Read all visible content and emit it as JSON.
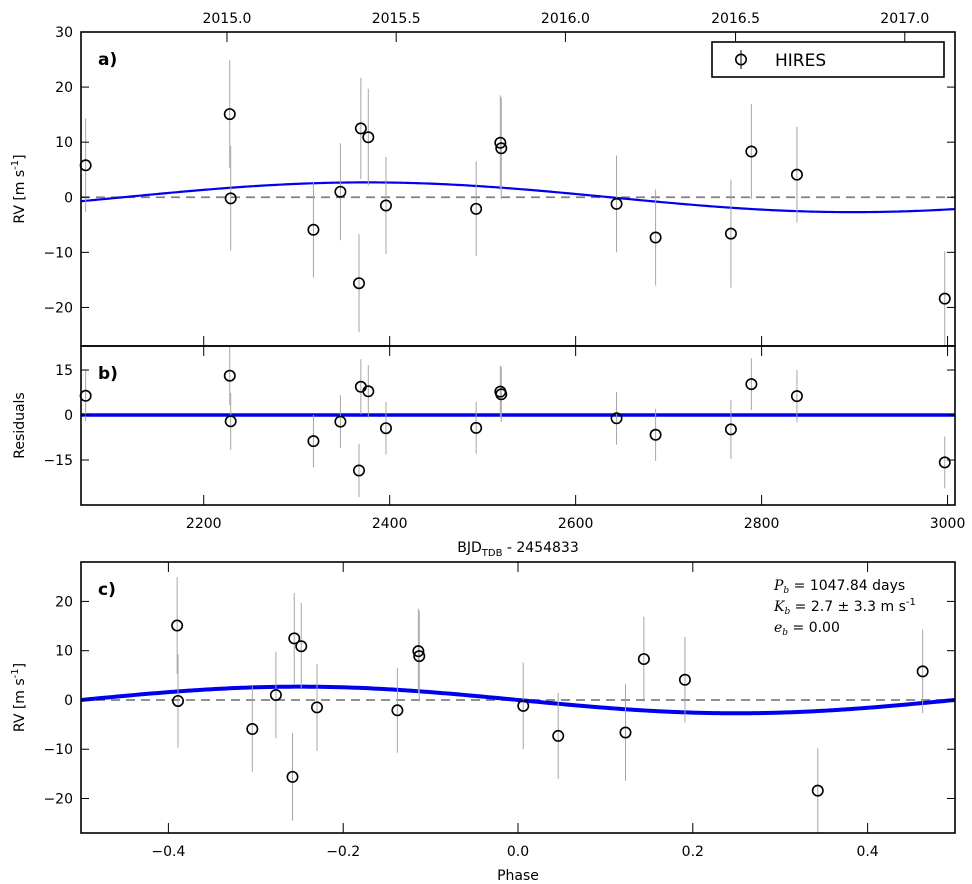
{
  "chart_data": [
    {
      "id": "a",
      "type": "scatter",
      "panel_label": "a)",
      "ylabel": "RV [m s",
      "ylabel_sup": "-1",
      "ylabel_end": "]",
      "xlim": [
        2068,
        3008
      ],
      "ylim": [
        -27,
        30
      ],
      "yticks": [
        -20,
        -10,
        0,
        10,
        20,
        30
      ],
      "top_axis_ticks": [
        {
          "x": 2225,
          "label": "2015.0"
        },
        {
          "x": 2407,
          "label": "2015.5"
        },
        {
          "x": 2589,
          "label": "2016.0"
        },
        {
          "x": 2772,
          "label": "2016.5"
        },
        {
          "x": 2954,
          "label": "2017.0"
        }
      ],
      "legend": {
        "label": "HIRES",
        "placement": "top-right"
      },
      "zero_line": 0,
      "model": {
        "type": "sinusoid",
        "amplitude": 2.7,
        "period": 1047.84,
        "peak_x": 2375
      },
      "points": [
        {
          "x": 2073,
          "y": 5.8,
          "err": 8.5
        },
        {
          "x": 2228,
          "y": 15.1,
          "err": 9.8
        },
        {
          "x": 2229,
          "y": -0.2,
          "err": 9.5
        },
        {
          "x": 2318,
          "y": -5.9,
          "err": 8.7
        },
        {
          "x": 2347,
          "y": 1.0,
          "err": 8.8
        },
        {
          "x": 2367,
          "y": -15.6,
          "err": 8.9
        },
        {
          "x": 2369,
          "y": 12.5,
          "err": 9.2
        },
        {
          "x": 2377,
          "y": 10.9,
          "err": 8.8
        },
        {
          "x": 2396,
          "y": -1.5,
          "err": 8.8
        },
        {
          "x": 2493,
          "y": -2.1,
          "err": 8.6
        },
        {
          "x": 2519,
          "y": 9.9,
          "err": 8.6
        },
        {
          "x": 2520,
          "y": 8.9,
          "err": 9.2
        },
        {
          "x": 2644,
          "y": -1.2,
          "err": 8.8
        },
        {
          "x": 2686,
          "y": -7.3,
          "err": 8.7
        },
        {
          "x": 2767,
          "y": -6.6,
          "err": 9.8
        },
        {
          "x": 2789,
          "y": 8.3,
          "err": 8.6
        },
        {
          "x": 2838,
          "y": 4.1,
          "err": 8.7
        },
        {
          "x": 2997,
          "y": -18.4,
          "err": 8.6
        }
      ]
    },
    {
      "id": "b",
      "type": "scatter",
      "panel_label": "b)",
      "ylabel": "Residuals",
      "xlabel": "BJD",
      "xlabel_sub": "TDB",
      "xlabel_end": " - 2454833",
      "xlim": [
        2068,
        3008
      ],
      "ylim": [
        -30,
        23
      ],
      "yticks": [
        -15,
        0,
        15
      ],
      "xticks": [
        2200,
        2400,
        2600,
        2800,
        3000
      ],
      "zero_line": 0,
      "points": [
        {
          "x": 2073,
          "y": 6.4,
          "err": 8.5
        },
        {
          "x": 2228,
          "y": 13.1,
          "err": 9.8
        },
        {
          "x": 2229,
          "y": -2.1,
          "err": 9.5
        },
        {
          "x": 2318,
          "y": -8.7,
          "err": 8.7
        },
        {
          "x": 2347,
          "y": -2.2,
          "err": 8.8
        },
        {
          "x": 2367,
          "y": -18.5,
          "err": 8.9
        },
        {
          "x": 2369,
          "y": 9.4,
          "err": 9.2
        },
        {
          "x": 2377,
          "y": 7.9,
          "err": 8.8
        },
        {
          "x": 2396,
          "y": -4.4,
          "err": 8.8
        },
        {
          "x": 2493,
          "y": -4.3,
          "err": 8.6
        },
        {
          "x": 2519,
          "y": 7.8,
          "err": 8.6
        },
        {
          "x": 2520,
          "y": 6.9,
          "err": 9.2
        },
        {
          "x": 2644,
          "y": -1.1,
          "err": 8.8
        },
        {
          "x": 2686,
          "y": -6.6,
          "err": 8.7
        },
        {
          "x": 2767,
          "y": -4.8,
          "err": 9.8
        },
        {
          "x": 2789,
          "y": 10.3,
          "err": 8.6
        },
        {
          "x": 2838,
          "y": 6.3,
          "err": 8.7
        },
        {
          "x": 2997,
          "y": -15.8,
          "err": 8.6
        }
      ]
    },
    {
      "id": "c",
      "type": "scatter",
      "panel_label": "c)",
      "ylabel": "RV [m s",
      "ylabel_sup": "-1",
      "ylabel_end": "]",
      "xlabel": "Phase",
      "xlim": [
        -0.5,
        0.5
      ],
      "ylim": [
        -27,
        28
      ],
      "yticks": [
        -20,
        -10,
        0,
        10,
        20
      ],
      "xticks": [
        -0.4,
        -0.2,
        0.0,
        0.2,
        0.4
      ],
      "xtick_labels": [
        "−0.4",
        "−0.2",
        "0.0",
        "0.2",
        "0.4"
      ],
      "ytick_labels": [
        "−20",
        "−10",
        "0",
        "10",
        "20"
      ],
      "zero_line": 0,
      "model": {
        "type": "sinusoid",
        "amplitude": 2.7,
        "period": 1.0,
        "peak_x": -0.25
      },
      "annotations": [
        {
          "sym": "P",
          "sub": "b",
          "text": " = 1047.84 days"
        },
        {
          "sym": "K",
          "sub": "b",
          "text": " = 2.7 ± 3.3 m s",
          "sup": "-1"
        },
        {
          "sym": "e",
          "sub": "b",
          "text": " = 0.00"
        }
      ],
      "points": [
        {
          "x": -0.39,
          "y": 15.1,
          "err": 9.8
        },
        {
          "x": -0.389,
          "y": -0.2,
          "err": 9.5
        },
        {
          "x": -0.304,
          "y": -5.9,
          "err": 8.7
        },
        {
          "x": -0.277,
          "y": 1.0,
          "err": 8.8
        },
        {
          "x": -0.258,
          "y": -15.6,
          "err": 8.9
        },
        {
          "x": -0.256,
          "y": 12.5,
          "err": 9.2
        },
        {
          "x": -0.248,
          "y": 10.9,
          "err": 8.8
        },
        {
          "x": -0.23,
          "y": -1.5,
          "err": 8.8
        },
        {
          "x": -0.138,
          "y": -2.1,
          "err": 8.6
        },
        {
          "x": -0.114,
          "y": 9.9,
          "err": 8.6
        },
        {
          "x": -0.113,
          "y": 8.9,
          "err": 9.2
        },
        {
          "x": 0.006,
          "y": -1.2,
          "err": 8.8
        },
        {
          "x": 0.046,
          "y": -7.3,
          "err": 8.7
        },
        {
          "x": 0.123,
          "y": -6.6,
          "err": 9.8
        },
        {
          "x": 0.144,
          "y": 8.3,
          "err": 8.6
        },
        {
          "x": 0.191,
          "y": 4.1,
          "err": 8.7
        },
        {
          "x": 0.343,
          "y": -18.4,
          "err": 8.6
        },
        {
          "x": 0.463,
          "y": 5.8,
          "err": 8.5
        }
      ]
    }
  ],
  "colors": {
    "model": "#0000ee",
    "zero_line": "#808080",
    "errorbar": "#a6a6a6",
    "marker_edge": "#000000"
  }
}
